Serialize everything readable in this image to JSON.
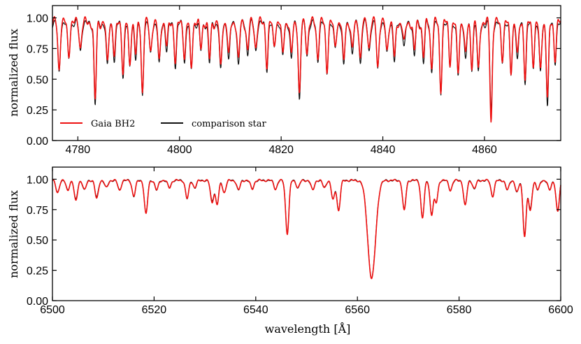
{
  "chart_data": [
    {
      "type": "line",
      "panel": "top",
      "xlim": [
        4775,
        4875
      ],
      "ylim": [
        0.0,
        1.1
      ],
      "xticks": [
        4780,
        4800,
        4820,
        4840,
        4860
      ],
      "yticks": [
        0.0,
        0.25,
        0.5,
        0.75,
        1.0
      ],
      "xtick_labels": [
        "4780",
        "4800",
        "4820",
        "4840",
        "4860"
      ],
      "ytick_labels": [
        "0.00",
        "0.25",
        "0.50",
        "0.75",
        "1.00"
      ],
      "ylabel": "normalized flux",
      "legend": {
        "location": "lower-left",
        "entries": [
          {
            "label": "Gaia BH2",
            "color": "#ee1111"
          },
          {
            "label": "comparison star",
            "color": "#111111"
          }
        ]
      },
      "series": [
        {
          "name": "comparison star",
          "color": "#111111",
          "continuum": 0.95,
          "noise": 0.04,
          "lines": [
            [
              4776.3,
              0.4
            ],
            [
              4778.2,
              0.28
            ],
            [
              4780.5,
              0.22
            ],
            [
              4783.4,
              0.66
            ],
            [
              4785.8,
              0.36
            ],
            [
              4787.2,
              0.3
            ],
            [
              4788.9,
              0.42
            ],
            [
              4790.2,
              0.36
            ],
            [
              4791.4,
              0.28
            ],
            [
              4792.7,
              0.58
            ],
            [
              4794.3,
              0.26
            ],
            [
              4796.0,
              0.35
            ],
            [
              4797.5,
              0.22
            ],
            [
              4799.2,
              0.34
            ],
            [
              4801.0,
              0.3
            ],
            [
              4802.3,
              0.38
            ],
            [
              4804.2,
              0.22
            ],
            [
              4805.9,
              0.32
            ],
            [
              4808.1,
              0.4
            ],
            [
              4809.7,
              0.3
            ],
            [
              4811.6,
              0.34
            ],
            [
              4813.4,
              0.25
            ],
            [
              4815.0,
              0.22
            ],
            [
              4817.2,
              0.36
            ],
            [
              4818.6,
              0.2
            ],
            [
              4820.3,
              0.28
            ],
            [
              4822.0,
              0.3
            ],
            [
              4823.6,
              0.62
            ],
            [
              4825.1,
              0.25
            ],
            [
              4827.2,
              0.3
            ],
            [
              4829.0,
              0.4
            ],
            [
              4830.6,
              0.22
            ],
            [
              4832.3,
              0.36
            ],
            [
              4834.0,
              0.26
            ],
            [
              4835.6,
              0.32
            ],
            [
              4837.3,
              0.22
            ],
            [
              4839.0,
              0.38
            ],
            [
              4840.8,
              0.26
            ],
            [
              4842.3,
              0.32
            ],
            [
              4844.2,
              0.2
            ],
            [
              4846.2,
              0.26
            ],
            [
              4848.0,
              0.3
            ],
            [
              4849.6,
              0.38
            ],
            [
              4851.4,
              0.56
            ],
            [
              4853.2,
              0.34
            ],
            [
              4854.8,
              0.44
            ],
            [
              4856.3,
              0.3
            ],
            [
              4857.5,
              0.36
            ],
            [
              4858.8,
              0.42
            ],
            [
              4861.3,
              0.72
            ],
            [
              4863.5,
              0.3
            ],
            [
              4865.2,
              0.42
            ],
            [
              4866.5,
              0.3
            ],
            [
              4868.0,
              0.46
            ],
            [
              4869.6,
              0.34
            ],
            [
              4871.0,
              0.42
            ],
            [
              4872.4,
              0.66
            ],
            [
              4873.9,
              0.3
            ]
          ]
        },
        {
          "name": "Gaia BH2",
          "color": "#ee1111",
          "continuum": 0.96,
          "noise": 0.05,
          "lines": [
            [
              4776.3,
              0.38
            ],
            [
              4778.2,
              0.26
            ],
            [
              4780.5,
              0.2
            ],
            [
              4783.4,
              0.64
            ],
            [
              4785.8,
              0.34
            ],
            [
              4787.2,
              0.28
            ],
            [
              4788.9,
              0.4
            ],
            [
              4790.2,
              0.34
            ],
            [
              4791.4,
              0.26
            ],
            [
              4792.7,
              0.56
            ],
            [
              4794.3,
              0.24
            ],
            [
              4796.0,
              0.33
            ],
            [
              4797.5,
              0.2
            ],
            [
              4799.2,
              0.32
            ],
            [
              4801.0,
              0.28
            ],
            [
              4802.3,
              0.36
            ],
            [
              4804.2,
              0.2
            ],
            [
              4805.9,
              0.3
            ],
            [
              4808.1,
              0.38
            ],
            [
              4809.7,
              0.28
            ],
            [
              4811.6,
              0.32
            ],
            [
              4813.4,
              0.23
            ],
            [
              4815.0,
              0.2
            ],
            [
              4817.2,
              0.34
            ],
            [
              4818.6,
              0.18
            ],
            [
              4820.3,
              0.26
            ],
            [
              4822.0,
              0.28
            ],
            [
              4823.6,
              0.6
            ],
            [
              4825.1,
              0.23
            ],
            [
              4827.2,
              0.28
            ],
            [
              4829.0,
              0.38
            ],
            [
              4830.6,
              0.2
            ],
            [
              4832.3,
              0.34
            ],
            [
              4834.0,
              0.24
            ],
            [
              4835.6,
              0.3
            ],
            [
              4837.3,
              0.2
            ],
            [
              4839.0,
              0.36
            ],
            [
              4840.8,
              0.24
            ],
            [
              4842.3,
              0.3
            ],
            [
              4844.2,
              0.18
            ],
            [
              4846.2,
              0.24
            ],
            [
              4848.0,
              0.28
            ],
            [
              4849.6,
              0.36
            ],
            [
              4851.4,
              0.54
            ],
            [
              4853.2,
              0.32
            ],
            [
              4854.8,
              0.42
            ],
            [
              4856.3,
              0.28
            ],
            [
              4857.5,
              0.34
            ],
            [
              4858.8,
              0.4
            ],
            [
              4861.3,
              0.8
            ],
            [
              4863.5,
              0.28
            ],
            [
              4865.2,
              0.4
            ],
            [
              4866.5,
              0.28
            ],
            [
              4868.0,
              0.44
            ],
            [
              4869.6,
              0.32
            ],
            [
              4871.0,
              0.4
            ],
            [
              4872.4,
              0.62
            ],
            [
              4873.9,
              0.28
            ]
          ]
        }
      ]
    },
    {
      "type": "line",
      "panel": "bottom",
      "xlim": [
        6500,
        6600
      ],
      "ylim": [
        0.0,
        1.1
      ],
      "xticks": [
        6500,
        6520,
        6540,
        6560,
        6580,
        6600
      ],
      "yticks": [
        0.0,
        0.25,
        0.5,
        0.75,
        1.0
      ],
      "xtick_labels": [
        "6500",
        "6520",
        "6540",
        "6560",
        "6580",
        "6600"
      ],
      "ytick_labels": [
        "0.00",
        "0.25",
        "0.50",
        "0.75",
        "1.00"
      ],
      "xlabel": "wavelength [Å]",
      "ylabel": "normalized flux",
      "series": [
        {
          "name": "comparison star",
          "color": "#111111",
          "continuum": 0.99,
          "noise": 0.012,
          "lines": [
            [
              6501.0,
              0.1
            ],
            [
              6503.0,
              0.08
            ],
            [
              6504.6,
              0.16
            ],
            [
              6506.3,
              0.08
            ],
            [
              6508.7,
              0.14
            ],
            [
              6510.6,
              0.06
            ],
            [
              6513.2,
              0.08
            ],
            [
              6516.0,
              0.13
            ],
            [
              6518.4,
              0.27
            ],
            [
              6520.5,
              0.08
            ],
            [
              6523.0,
              0.06
            ],
            [
              6526.5,
              0.15
            ],
            [
              6528.0,
              0.06
            ],
            [
              6531.4,
              0.17
            ],
            [
              6532.4,
              0.19
            ],
            [
              6533.8,
              0.1
            ],
            [
              6536.6,
              0.08
            ],
            [
              6539.3,
              0.07
            ],
            [
              6543.9,
              0.07
            ],
            [
              6546.2,
              0.43
            ],
            [
              6548.3,
              0.06
            ],
            [
              6551.2,
              0.08
            ],
            [
              6553.5,
              0.06
            ],
            [
              6555.2,
              0.16
            ],
            [
              6556.3,
              0.24
            ],
            [
              6562.8,
              0.8
            ],
            [
              6569.2,
              0.24
            ],
            [
              6572.8,
              0.3
            ],
            [
              6574.6,
              0.27
            ],
            [
              6575.5,
              0.18
            ],
            [
              6578.3,
              0.08
            ],
            [
              6581.2,
              0.2
            ],
            [
              6583.0,
              0.07
            ],
            [
              6586.6,
              0.13
            ],
            [
              6589.5,
              0.08
            ],
            [
              6591.4,
              0.1
            ],
            [
              6592.9,
              0.44
            ],
            [
              6594.0,
              0.24
            ],
            [
              6595.5,
              0.08
            ],
            [
              6597.8,
              0.08
            ],
            [
              6599.4,
              0.25
            ]
          ]
        },
        {
          "name": "Gaia BH2",
          "color": "#ee1111",
          "continuum": 0.99,
          "noise": 0.012,
          "lines": [
            [
              6501.0,
              0.1
            ],
            [
              6503.0,
              0.08
            ],
            [
              6504.6,
              0.17
            ],
            [
              6506.3,
              0.08
            ],
            [
              6508.7,
              0.15
            ],
            [
              6510.6,
              0.06
            ],
            [
              6513.2,
              0.08
            ],
            [
              6516.0,
              0.13
            ],
            [
              6518.4,
              0.28
            ],
            [
              6520.5,
              0.08
            ],
            [
              6523.0,
              0.06
            ],
            [
              6526.5,
              0.15
            ],
            [
              6528.0,
              0.06
            ],
            [
              6531.4,
              0.18
            ],
            [
              6532.4,
              0.2
            ],
            [
              6533.8,
              0.1
            ],
            [
              6536.6,
              0.08
            ],
            [
              6539.3,
              0.07
            ],
            [
              6543.9,
              0.07
            ],
            [
              6546.2,
              0.44
            ],
            [
              6548.3,
              0.06
            ],
            [
              6551.2,
              0.08
            ],
            [
              6553.5,
              0.06
            ],
            [
              6555.2,
              0.16
            ],
            [
              6556.3,
              0.25
            ],
            [
              6562.8,
              0.81
            ],
            [
              6569.2,
              0.25
            ],
            [
              6572.8,
              0.31
            ],
            [
              6574.6,
              0.28
            ],
            [
              6575.5,
              0.18
            ],
            [
              6578.3,
              0.08
            ],
            [
              6581.2,
              0.21
            ],
            [
              6583.0,
              0.07
            ],
            [
              6586.6,
              0.13
            ],
            [
              6589.5,
              0.08
            ],
            [
              6591.4,
              0.1
            ],
            [
              6592.9,
              0.46
            ],
            [
              6594.0,
              0.25
            ],
            [
              6595.5,
              0.08
            ],
            [
              6597.8,
              0.08
            ],
            [
              6599.4,
              0.26
            ]
          ]
        }
      ]
    }
  ]
}
